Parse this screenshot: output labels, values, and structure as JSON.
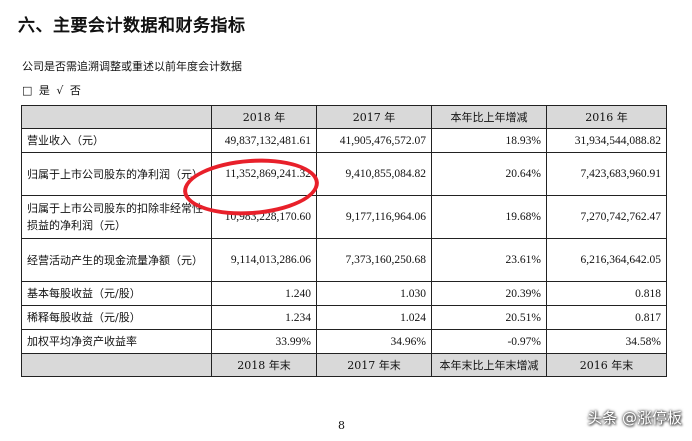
{
  "section_title": "六、主要会计数据和财务指标",
  "question": "公司是否需追溯调整或重述以前年度会计数据",
  "answer": {
    "yes_box": "□",
    "yes_label": "是",
    "no_check": "√",
    "no_label": "否"
  },
  "table": {
    "headers": [
      "",
      "2018 年",
      "2017 年",
      "本年比上年增减",
      "2016 年"
    ],
    "rows": [
      {
        "label": "营业收入（元）",
        "v2018": "49,837,132,481.61",
        "v2017": "41,905,476,572.07",
        "change": "18.93%",
        "v2016": "31,934,544,088.82"
      },
      {
        "label": "归属于上市公司股东的净利润（元）",
        "v2018": "11,352,869,241.32",
        "v2017": "9,410,855,084.82",
        "change": "20.64%",
        "v2016": "7,423,683,960.91"
      },
      {
        "label": "归属于上市公司股东的扣除非经常性损益的净利润（元）",
        "v2018": "10,983,228,170.60",
        "v2017": "9,177,116,964.06",
        "change": "19.68%",
        "v2016": "7,270,742,762.47"
      },
      {
        "label": "经营活动产生的现金流量净额（元）",
        "v2018": "9,114,013,286.06",
        "v2017": "7,373,160,250.68",
        "change": "23.61%",
        "v2016": "6,216,364,642.05"
      },
      {
        "label": "基本每股收益（元/股）",
        "v2018": "1.240",
        "v2017": "1.030",
        "change": "20.39%",
        "v2016": "0.818"
      },
      {
        "label": "稀释每股收益（元/股）",
        "v2018": "1.234",
        "v2017": "1.024",
        "change": "20.51%",
        "v2016": "0.817"
      },
      {
        "label": "加权平均净资产收益率",
        "v2018": "33.99%",
        "v2017": "34.96%",
        "change": "-0.97%",
        "v2016": "34.58%"
      }
    ],
    "footer": [
      "",
      "2018 年末",
      "2017 年末",
      "本年末比上年末增减",
      "2016 年末"
    ]
  },
  "highlight_color": "#e8202a",
  "page_number": "8",
  "watermark": "头条 @涨停板"
}
